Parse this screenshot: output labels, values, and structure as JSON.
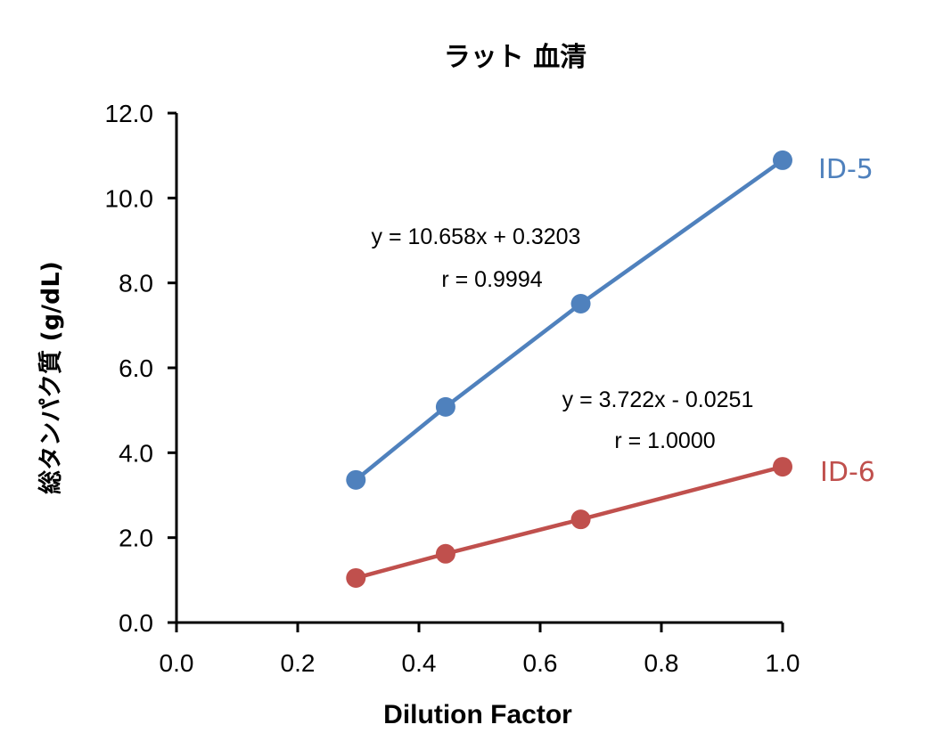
{
  "chart_data": {
    "type": "scatter",
    "title": "ラット 血清",
    "xlabel": "Dilution Factor",
    "ylabel": "総タンパク質 (g/dL)",
    "xlim": [
      0.0,
      1.0
    ],
    "ylim": [
      0.0,
      12.0
    ],
    "x_ticks": [
      "0.0",
      "0.2",
      "0.4",
      "0.6",
      "0.8",
      "1.0"
    ],
    "y_ticks": [
      "0.0",
      "2.0",
      "4.0",
      "6.0",
      "8.0",
      "10.0",
      "12.0"
    ],
    "grid": false,
    "legend": "inline labels at line ends",
    "series": [
      {
        "name": "ID-5",
        "color": "#4F81BD",
        "x": [
          0.296,
          0.444,
          0.667,
          1.0
        ],
        "y": [
          3.36,
          5.08,
          7.51,
          10.89
        ],
        "trendline": "y = 10.658x + 0.3203",
        "r": "r = 0.9994"
      },
      {
        "name": "ID-6",
        "color": "#C0504D",
        "x": [
          0.296,
          0.444,
          0.667,
          1.0
        ],
        "y": [
          1.05,
          1.62,
          2.43,
          3.67
        ],
        "trendline": "y = 3.722x - 0.0251",
        "r": "r = 1.0000"
      }
    ]
  }
}
